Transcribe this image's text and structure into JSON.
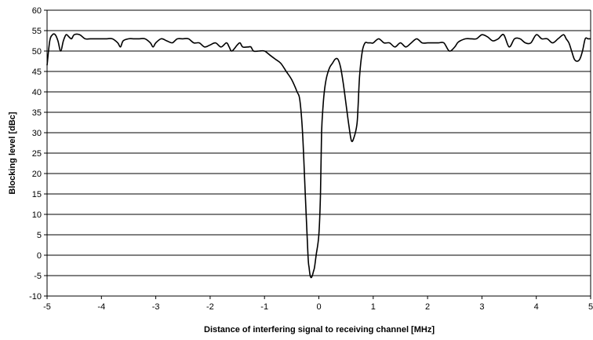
{
  "chart_data": {
    "type": "line",
    "title": "",
    "xlabel": "Distance of interfering signal to receiving channel [MHz]",
    "ylabel": "Blocking level [dBc]",
    "xlim": [
      -5,
      5
    ],
    "ylim": [
      -10,
      60
    ],
    "xticks": [
      -5,
      -4,
      -3,
      -2,
      -1,
      0,
      1,
      2,
      3,
      4,
      5
    ],
    "yticks": [
      -10,
      -5,
      0,
      5,
      10,
      15,
      20,
      25,
      30,
      35,
      40,
      45,
      50,
      55,
      60
    ],
    "grid": "horizontal",
    "legend": "none",
    "line_color": "#000000",
    "series": [
      {
        "x": [
          -5.0,
          -4.95,
          -4.9,
          -4.85,
          -4.8,
          -4.75,
          -4.7,
          -4.65,
          -4.6,
          -4.55,
          -4.5,
          -4.4,
          -4.3,
          -4.2,
          -4.1,
          -4.0,
          -3.9,
          -3.8,
          -3.7,
          -3.65,
          -3.6,
          -3.5,
          -3.4,
          -3.3,
          -3.2,
          -3.1,
          -3.05,
          -3.0,
          -2.9,
          -2.8,
          -2.7,
          -2.65,
          -2.6,
          -2.5,
          -2.4,
          -2.3,
          -2.2,
          -2.1,
          -2.0,
          -1.9,
          -1.8,
          -1.7,
          -1.65,
          -1.6,
          -1.5,
          -1.45,
          -1.4,
          -1.3,
          -1.25,
          -1.2,
          -1.1,
          -1.0,
          -0.9,
          -0.8,
          -0.7,
          -0.6,
          -0.5,
          -0.4,
          -0.35,
          -0.3,
          -0.25,
          -0.2,
          -0.18,
          -0.16,
          -0.14,
          -0.12,
          -0.1,
          -0.08,
          -0.05,
          0.0,
          0.03,
          0.05,
          0.08,
          0.1,
          0.12,
          0.15,
          0.2,
          0.25,
          0.3,
          0.35,
          0.4,
          0.45,
          0.5,
          0.55,
          0.6,
          0.65,
          0.7,
          0.72,
          0.75,
          0.8,
          0.85,
          0.9,
          0.95,
          1.0,
          1.1,
          1.2,
          1.3,
          1.4,
          1.5,
          1.6,
          1.7,
          1.8,
          1.9,
          2.0,
          2.1,
          2.2,
          2.3,
          2.4,
          2.5,
          2.55,
          2.6,
          2.7,
          2.8,
          2.9,
          3.0,
          3.1,
          3.2,
          3.3,
          3.4,
          3.5,
          3.6,
          3.7,
          3.8,
          3.9,
          4.0,
          4.1,
          4.2,
          4.3,
          4.4,
          4.5,
          4.55,
          4.6,
          4.65,
          4.7,
          4.75,
          4.8,
          4.85,
          4.9,
          4.95,
          5.0
        ],
        "y": [
          46.5,
          52.5,
          54.0,
          54.0,
          52.5,
          50.0,
          52.5,
          54.0,
          53.5,
          53.0,
          54.0,
          54.0,
          53.0,
          53.0,
          53.0,
          53.0,
          53.0,
          53.0,
          52.0,
          51.0,
          52.5,
          53.0,
          53.0,
          53.0,
          53.0,
          52.0,
          51.0,
          52.0,
          53.0,
          52.5,
          52.0,
          52.5,
          53.0,
          53.0,
          53.0,
          52.0,
          52.0,
          51.0,
          51.5,
          52.0,
          51.0,
          52.0,
          51.0,
          50.0,
          51.5,
          52.0,
          51.0,
          51.0,
          51.0,
          50.0,
          50.0,
          50.0,
          49.0,
          48.0,
          47.0,
          45.0,
          43.0,
          40.0,
          38.0,
          30.0,
          15.0,
          0.0,
          -3.0,
          -5.0,
          -5.5,
          -5.0,
          -4.0,
          -3.0,
          0.0,
          5.0,
          15.0,
          30.0,
          37.0,
          40.0,
          42.0,
          44.0,
          46.0,
          47.0,
          48.0,
          48.0,
          46.0,
          42.0,
          37.0,
          32.0,
          28.0,
          29.0,
          32.0,
          36.0,
          44.0,
          50.0,
          52.0,
          52.0,
          52.0,
          52.0,
          53.0,
          52.0,
          52.0,
          51.0,
          52.0,
          51.0,
          52.0,
          53.0,
          52.0,
          52.0,
          52.0,
          52.0,
          52.0,
          50.0,
          51.0,
          52.0,
          52.5,
          53.0,
          53.0,
          53.0,
          54.0,
          53.5,
          52.5,
          53.0,
          54.0,
          51.0,
          53.0,
          53.0,
          52.0,
          52.0,
          54.0,
          53.0,
          53.0,
          52.0,
          53.0,
          54.0,
          53.0,
          52.0,
          50.0,
          48.0,
          47.5,
          48.0,
          50.0,
          53.0,
          53.0,
          53.0
        ]
      }
    ]
  }
}
